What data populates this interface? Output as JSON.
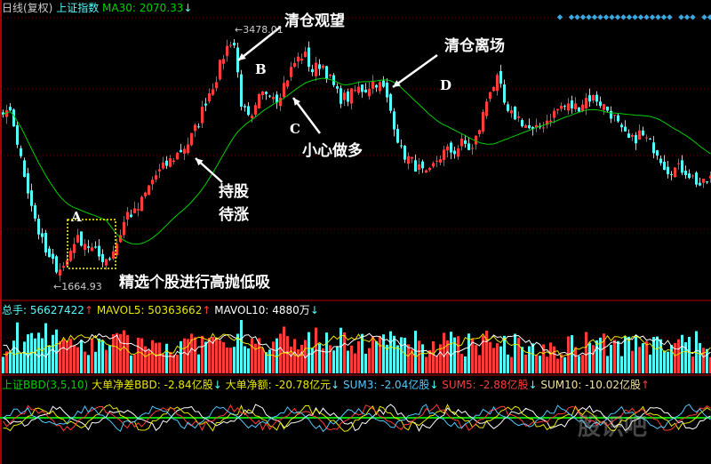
{
  "header": {
    "period": "日线(复权)",
    "index": "上证指数",
    "ma30": "MA30: 2070.33",
    "ma30_arrow": "↓"
  },
  "volume_header": {
    "total": "总手: 56627422",
    "total_arrow": "↑",
    "mavol5": "MAVOL5: 50363662",
    "mavol5_arrow": "↑",
    "mavol10": "MAVOL10: 4880万",
    "mavol10_arrow": "↓"
  },
  "bbd_header": {
    "name": "上证BBD(3,5,10)",
    "bbd": "大单净差BBD: -2.84亿股",
    "bbd_arrow": "↓",
    "amount": "大单净额: -20.78亿元",
    "amount_arrow": "↓",
    "sum3": "SUM3: -2.04亿股",
    "sum3_arrow": "↓",
    "sum5": "SUM5: -2.88亿股",
    "sum5_arrow": "↓",
    "sum10": "SUM10: -10.02亿股",
    "sum10_arrow": "↑"
  },
  "annotations": {
    "b1": "清仓观望",
    "b2": "清仓离场",
    "c": "小心做多",
    "hold1": "持股",
    "hold2": "待涨",
    "low": "精选个股进行高抛低吸",
    "A": "A",
    "B": "B",
    "C": "C",
    "D": "D"
  },
  "price_labels": {
    "high": "3478.01",
    "low": "1664.93"
  },
  "watermark": "股识吧",
  "colors": {
    "up": "#ff3c3c",
    "down": "#54fcfc",
    "ma30": "#00d000",
    "border": "#b00000"
  },
  "chart_data": {
    "type": "candlestick",
    "title": "上证指数",
    "high": 3478.01,
    "low": 1664.93,
    "close_path": [
      2869,
      2869,
      2552,
      2298,
      2044,
      1854,
      1791,
      1791,
      1981,
      1981,
      1918,
      1854,
      1854,
      1981,
      2171,
      2171,
      2298,
      2425,
      2489,
      2552,
      2615,
      2679,
      2806,
      2996,
      3123,
      3313,
      3440,
      2933,
      2806,
      2996,
      3059,
      2996,
      3123,
      3250,
      3313,
      3187,
      3250,
      3123,
      2996,
      2996,
      3059,
      3059,
      3123,
      3059,
      2869,
      2615,
      2552,
      2489,
      2425,
      2552,
      2615,
      2615,
      2679,
      2615,
      2806,
      3059,
      3123,
      2869,
      2869,
      2806,
      2742,
      2806,
      2869,
      2933,
      2933,
      2933,
      2996,
      2996,
      2933,
      2869,
      2742,
      2679,
      2742,
      2679,
      2615,
      2489,
      2489,
      2489,
      2425,
      2362,
      2425
    ],
    "ma30_last": 2070.33
  }
}
